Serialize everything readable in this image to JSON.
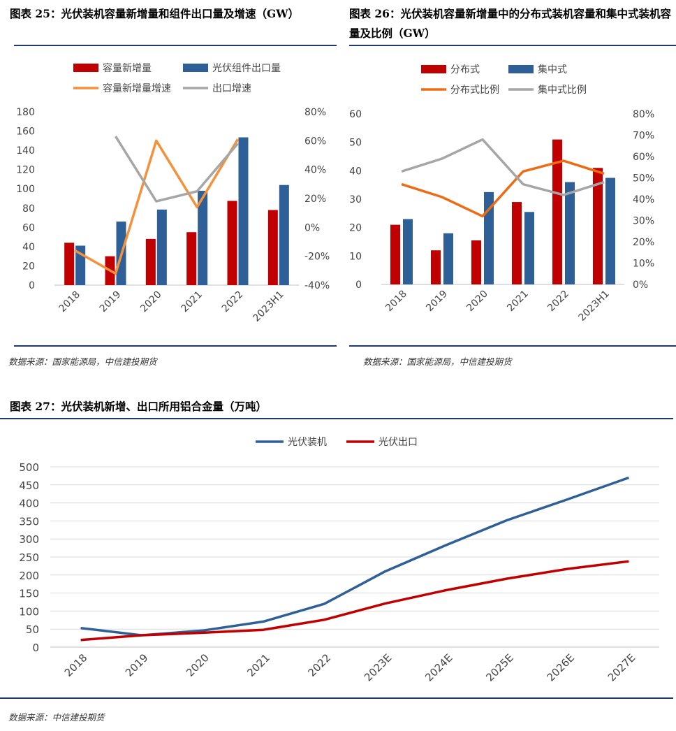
{
  "fig25": {
    "title": "图表 25：光伏装机容量新增量和组件出口量及增速（GW）",
    "source": "数据来源：国家能源局，中信建投期货"
  },
  "fig26": {
    "title": "图表 26：光伏装机容量新增量中的分布式装机容量和集中式装机容量及比例（GW）",
    "source": "数据来源：国家能源局，中信建投期货"
  },
  "fig27": {
    "title": "图表 27：光伏装机新增、出口所用铝合金量（万吨）",
    "source": "数据来源：中信建投期货"
  },
  "colors": {
    "red": "#c00000",
    "blue": "#2e5f96",
    "orange": "#f5913a",
    "gray": "#a6a6a6",
    "deep_orange": "#ed6b14",
    "rule": "#1f3a6e"
  },
  "chart_data": [
    {
      "id": "fig25",
      "type": "bar",
      "categories": [
        "2018",
        "2019",
        "2020",
        "2021",
        "2022",
        "2023H1"
      ],
      "series": [
        {
          "name": "容量新增量",
          "kind": "bar",
          "axis": "left",
          "color": "#c00000",
          "values": [
            44,
            30,
            48,
            55,
            87.5,
            78
          ]
        },
        {
          "name": "光伏组件出口量",
          "kind": "bar",
          "axis": "left",
          "color": "#2e5f96",
          "values": [
            41,
            66,
            78.5,
            98,
            153.5,
            104
          ]
        },
        {
          "name": "容量新增量增速",
          "kind": "line",
          "axis": "right",
          "color": "#f5913a",
          "values": [
            -16,
            -32,
            60,
            14,
            61,
            null
          ]
        },
        {
          "name": "出口增速",
          "kind": "line",
          "axis": "right",
          "color": "#a6a6a6",
          "values": [
            null,
            63,
            18,
            25,
            58,
            null
          ]
        }
      ],
      "left_axis": {
        "min": 0,
        "max": 180,
        "ticks": [
          "0",
          "20",
          "40",
          "60",
          "80",
          "100",
          "120",
          "140",
          "160",
          "180"
        ]
      },
      "right_axis": {
        "min": -40,
        "max": 80,
        "ticks": [
          "-40%",
          "-20%",
          "0%",
          "20%",
          "40%",
          "60%",
          "80%"
        ]
      },
      "legend_position": "top"
    },
    {
      "id": "fig26",
      "type": "bar",
      "categories": [
        "2018",
        "2019",
        "2020",
        "2021",
        "2022",
        "2023H1"
      ],
      "series": [
        {
          "name": "分布式",
          "kind": "bar",
          "axis": "left",
          "color": "#c00000",
          "values": [
            21,
            12,
            15.5,
            29,
            51,
            41
          ]
        },
        {
          "name": "集中式",
          "kind": "bar",
          "axis": "left",
          "color": "#2e5f96",
          "values": [
            23,
            18,
            32.5,
            25.5,
            36,
            37.5
          ]
        },
        {
          "name": "分布式比例",
          "kind": "line",
          "axis": "right",
          "color": "#ed6b14",
          "values": [
            47,
            41,
            32,
            53,
            58,
            52
          ]
        },
        {
          "name": "集中式比例",
          "kind": "line",
          "axis": "right",
          "color": "#a6a6a6",
          "values": [
            53,
            59,
            68,
            47,
            42,
            48
          ]
        }
      ],
      "left_axis": {
        "min": 0,
        "max": 60,
        "ticks": [
          "0",
          "10",
          "20",
          "30",
          "40",
          "50",
          "60"
        ]
      },
      "right_axis": {
        "min": 0,
        "max": 80,
        "ticks": [
          "0%",
          "10%",
          "20%",
          "30%",
          "40%",
          "50%",
          "60%",
          "70%",
          "80%"
        ]
      },
      "legend_position": "top"
    },
    {
      "id": "fig27",
      "type": "line",
      "categories": [
        "2018",
        "2019",
        "2020",
        "2021",
        "2022",
        "2023E",
        "2024E",
        "2025E",
        "2026E",
        "2027E"
      ],
      "series": [
        {
          "name": "光伏装机",
          "color": "#2e5f96",
          "values": [
            53,
            33,
            46,
            71,
            120,
            210,
            283,
            352,
            410,
            470
          ]
        },
        {
          "name": "光伏出口",
          "color": "#c00000",
          "values": [
            20,
            33,
            40,
            48,
            76,
            121,
            158,
            190,
            217,
            238
          ]
        }
      ],
      "y_axis": {
        "min": 0,
        "max": 500,
        "ticks": [
          "0",
          "50",
          "100",
          "150",
          "200",
          "250",
          "300",
          "350",
          "400",
          "450",
          "500"
        ]
      },
      "grid": true,
      "legend_position": "top"
    }
  ]
}
